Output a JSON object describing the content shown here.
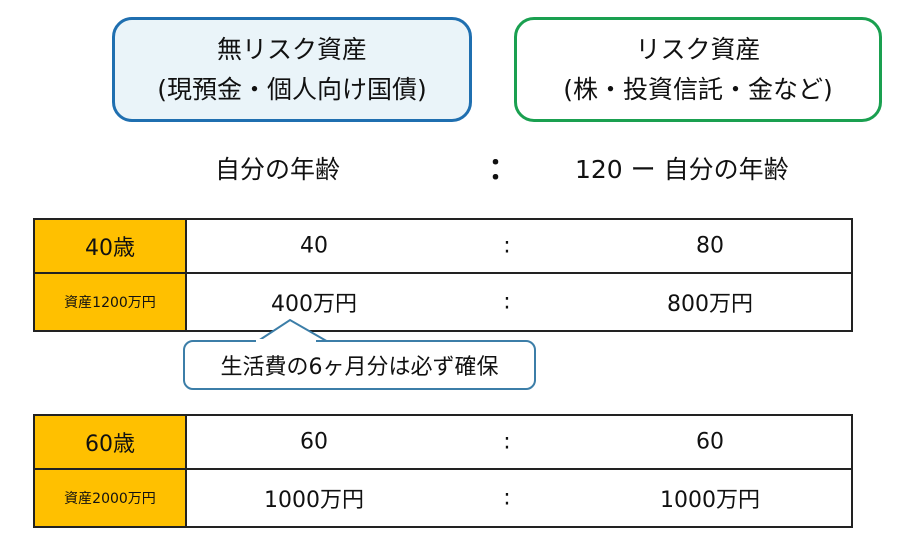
{
  "risk_free": {
    "title": "無リスク資産",
    "subtitle": "(現預金・個人向け国債)",
    "color": "#1f6fb0"
  },
  "risky": {
    "title": "リスク資産",
    "subtitle": "(株・投資信託・金など)",
    "color": "#1aa050"
  },
  "formula": {
    "left": "自分の年齢",
    "separator": "：",
    "right": "120 ー 自分の年齢"
  },
  "tables": [
    {
      "age": "40歳",
      "ratio_left": "40",
      "ratio_sep": ":",
      "ratio_right": "80",
      "assets": "資産1200万円",
      "amount_left": "400万円",
      "amount_sep": ":",
      "amount_right": "800万円"
    },
    {
      "age": "60歳",
      "ratio_left": "60",
      "ratio_sep": ":",
      "ratio_right": "60",
      "assets": "資産2000万円",
      "amount_left": "1000万円",
      "amount_sep": ":",
      "amount_right": "1000万円"
    }
  ],
  "callout": "生活費の6ヶ月分は必ず確保",
  "label_color": "#ffc000"
}
